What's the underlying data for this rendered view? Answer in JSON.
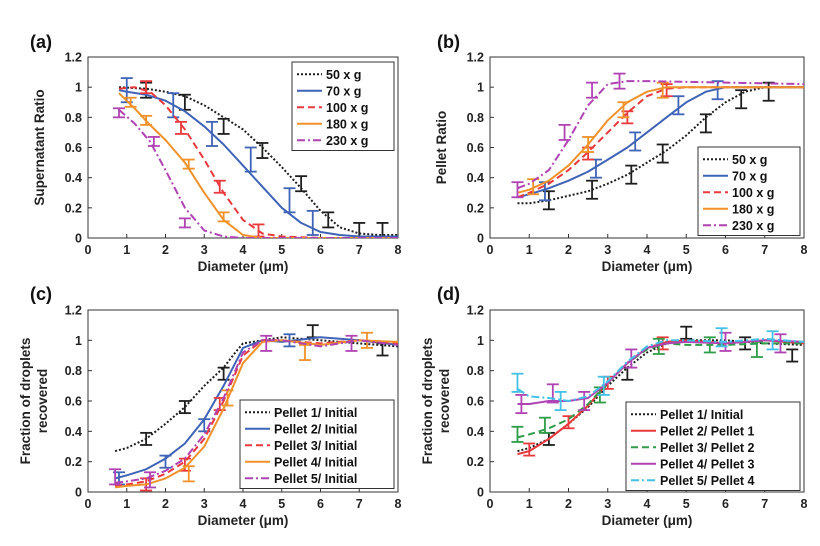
{
  "colors": {
    "black": "#1e1e1e",
    "blue": "#3f63b6",
    "red": "#e8393c",
    "orange": "#f0912a",
    "purple": "#b043b3",
    "green": "#2f9c48",
    "cyan": "#45c0e6"
  },
  "chart_data": [
    {
      "type": "line",
      "panel": "(a)",
      "xlabel": "Diameter (μm)",
      "ylabel": "Supernatant Ratio",
      "xlim": [
        0,
        8
      ],
      "ylim": [
        0,
        1.2
      ],
      "xticks": [
        "0",
        "1",
        "2",
        "3",
        "4",
        "5",
        "6",
        "7",
        "8"
      ],
      "yticks": [
        "0",
        "0.2",
        "0.4",
        "0.6",
        "0.8",
        "1",
        "1.2"
      ],
      "legend_position": "top-right",
      "series": [
        {
          "name": "50 x g",
          "color": "black",
          "dash": "dot",
          "x": [
            0.8,
            1.5,
            2.0,
            2.5,
            3.0,
            3.5,
            4.0,
            4.5,
            5.0,
            5.5,
            6.0,
            6.5,
            7.0,
            7.5,
            8.0
          ],
          "y": [
            1.0,
            0.99,
            0.97,
            0.94,
            0.88,
            0.8,
            0.72,
            0.6,
            0.47,
            0.33,
            0.18,
            0.07,
            0.03,
            0.02,
            0.02
          ],
          "err_x": [
            1.5,
            2.5,
            3.5,
            4.5,
            5.5,
            6.2,
            7.0,
            7.6
          ],
          "err_y": [
            0.98,
            0.9,
            0.74,
            0.58,
            0.36,
            0.12,
            0.05,
            0.05
          ],
          "err": 0.05
        },
        {
          "name": "70 x g",
          "color": "blue",
          "dash": "solid",
          "x": [
            0.8,
            1.0,
            1.5,
            2.0,
            2.5,
            3.0,
            3.5,
            4.0,
            4.5,
            5.0,
            5.5,
            6.0,
            6.5,
            7.0,
            8.0
          ],
          "y": [
            0.98,
            0.97,
            0.95,
            0.91,
            0.84,
            0.74,
            0.62,
            0.48,
            0.34,
            0.2,
            0.1,
            0.04,
            0.02,
            0.01,
            0.01
          ],
          "err_x": [
            1.0,
            2.2,
            3.2,
            4.2,
            5.2,
            5.8
          ],
          "err_y": [
            0.98,
            0.88,
            0.69,
            0.52,
            0.25,
            0.1
          ],
          "err": 0.08
        },
        {
          "name": "100 x g",
          "color": "red",
          "dash": "dash",
          "x": [
            0.8,
            1.2,
            1.6,
            2.0,
            2.5,
            3.0,
            3.5,
            4.0,
            4.5,
            5.0,
            6.0,
            8.0
          ],
          "y": [
            0.99,
            1.0,
            0.97,
            0.88,
            0.72,
            0.52,
            0.3,
            0.12,
            0.03,
            0.01,
            0.0,
            0.0
          ],
          "err_x": [
            1.5,
            2.4,
            3.4,
            4.4
          ],
          "err_y": [
            1.0,
            0.73,
            0.34,
            0.05
          ],
          "err": 0.04
        },
        {
          "name": "180 x g",
          "color": "orange",
          "dash": "solid",
          "x": [
            0.8,
            1.2,
            1.6,
            2.0,
            2.5,
            3.0,
            3.5,
            4.0,
            4.5,
            5.0,
            8.0
          ],
          "y": [
            0.96,
            0.86,
            0.75,
            0.65,
            0.5,
            0.3,
            0.12,
            0.02,
            0.0,
            0.0,
            0.0
          ],
          "err_x": [
            1.1,
            1.5,
            2.6,
            3.5
          ],
          "err_y": [
            0.9,
            0.78,
            0.49,
            0.14
          ],
          "err": 0.03
        },
        {
          "name": "230 x g",
          "color": "purple",
          "dash": "dashdot",
          "x": [
            0.8,
            1.2,
            1.6,
            2.0,
            2.5,
            3.0,
            3.5,
            4.0,
            8.0
          ],
          "y": [
            0.85,
            0.76,
            0.64,
            0.45,
            0.2,
            0.05,
            0.01,
            0.0,
            0.0
          ],
          "err_x": [
            0.8,
            1.7,
            2.5
          ],
          "err_y": [
            0.83,
            0.64,
            0.1
          ],
          "err": 0.03
        }
      ]
    },
    {
      "type": "line",
      "panel": "(b)",
      "xlabel": "Diameter (μm)",
      "ylabel": "Pellet Ratio",
      "xlim": [
        0,
        8
      ],
      "ylim": [
        0,
        1.2
      ],
      "xticks": [
        "0",
        "1",
        "2",
        "3",
        "4",
        "5",
        "6",
        "7",
        "8"
      ],
      "yticks": [
        "0",
        "0.2",
        "0.4",
        "0.6",
        "0.8",
        "1",
        "1.2"
      ],
      "legend_position": "bottom-right",
      "series": [
        {
          "name": "50 x g",
          "color": "black",
          "dash": "dot",
          "x": [
            0.7,
            1.0,
            1.5,
            2.0,
            2.5,
            3.0,
            3.5,
            4.0,
            4.5,
            5.0,
            5.5,
            6.0,
            6.5,
            7.0,
            7.5,
            8.0
          ],
          "y": [
            0.23,
            0.23,
            0.25,
            0.28,
            0.31,
            0.36,
            0.42,
            0.5,
            0.58,
            0.68,
            0.8,
            0.9,
            0.97,
            1.0,
            1.0,
            1.0
          ],
          "err_x": [
            1.5,
            2.6,
            3.6,
            4.4,
            5.5,
            6.4,
            7.1
          ],
          "err_y": [
            0.25,
            0.32,
            0.42,
            0.56,
            0.76,
            0.92,
            0.97
          ],
          "err": 0.06
        },
        {
          "name": "70 x g",
          "color": "blue",
          "dash": "solid",
          "x": [
            0.7,
            1.0,
            1.5,
            2.0,
            2.5,
            3.0,
            3.5,
            4.0,
            4.5,
            5.0,
            5.5,
            6.0,
            6.5,
            7.0,
            8.0
          ],
          "y": [
            0.27,
            0.29,
            0.33,
            0.38,
            0.44,
            0.52,
            0.6,
            0.7,
            0.8,
            0.9,
            0.97,
            1.0,
            1.0,
            1.0,
            1.0
          ],
          "err_x": [
            1.4,
            2.7,
            3.7,
            4.8,
            5.8
          ],
          "err_y": [
            0.31,
            0.46,
            0.64,
            0.88,
            0.98
          ],
          "err": 0.06
        },
        {
          "name": "100 x g",
          "color": "red",
          "dash": "dash",
          "x": [
            0.7,
            1.0,
            1.5,
            2.0,
            2.5,
            3.0,
            3.5,
            4.0,
            4.5,
            5.0,
            8.0
          ],
          "y": [
            0.27,
            0.3,
            0.36,
            0.45,
            0.57,
            0.7,
            0.83,
            0.94,
            0.99,
            1.0,
            1.0
          ],
          "err_x": [
            2.5,
            3.5,
            4.5
          ],
          "err_y": [
            0.56,
            0.8,
            0.98
          ],
          "err": 0.04
        },
        {
          "name": "180 x g",
          "color": "orange",
          "dash": "solid",
          "x": [
            0.7,
            1.0,
            1.5,
            2.0,
            2.5,
            3.0,
            3.5,
            4.0,
            4.5,
            5.0,
            8.0
          ],
          "y": [
            0.3,
            0.32,
            0.38,
            0.48,
            0.62,
            0.78,
            0.9,
            0.97,
            1.0,
            1.0,
            1.0
          ],
          "err_x": [
            1.1,
            2.5,
            3.4,
            4.4
          ],
          "err_y": [
            0.34,
            0.62,
            0.85,
            0.98
          ],
          "err": 0.05
        },
        {
          "name": "230 x g",
          "color": "purple",
          "dash": "dashdot",
          "x": [
            0.7,
            1.0,
            1.5,
            2.0,
            2.5,
            3.0,
            3.5,
            4.0,
            8.0
          ],
          "y": [
            0.33,
            0.36,
            0.45,
            0.65,
            0.88,
            1.02,
            1.04,
            1.04,
            1.02
          ],
          "err_x": [
            0.7,
            1.9,
            2.6,
            3.3
          ],
          "err_y": [
            0.32,
            0.7,
            0.98,
            1.04
          ],
          "err": 0.05
        }
      ]
    },
    {
      "type": "line",
      "panel": "(c)",
      "xlabel": "Diameter (μm)",
      "ylabel": "Fraction of droplets recovered",
      "ylabel_lines": [
        "Fraction of droplets",
        "recovered"
      ],
      "xlim": [
        0,
        8
      ],
      "ylim": [
        0,
        1.2
      ],
      "xticks": [
        "0",
        "1",
        "2",
        "3",
        "4",
        "5",
        "6",
        "7",
        "8"
      ],
      "yticks": [
        "0",
        "0.2",
        "0.4",
        "0.6",
        "0.8",
        "1",
        "1.2"
      ],
      "legend_position": "bottom-right",
      "series": [
        {
          "name": "Pellet 1/ Initial",
          "color": "black",
          "dash": "dot",
          "x": [
            0.7,
            1.0,
            1.5,
            2.0,
            2.5,
            3.0,
            3.5,
            3.8,
            4.0,
            4.5,
            5.0,
            6.0,
            7.0,
            8.0
          ],
          "y": [
            0.27,
            0.29,
            0.35,
            0.45,
            0.56,
            0.7,
            0.82,
            0.92,
            0.98,
            1.0,
            1.02,
            1.0,
            0.98,
            0.96
          ],
          "err_x": [
            1.5,
            2.5,
            3.5,
            5.8,
            7.6
          ],
          "err_y": [
            0.35,
            0.56,
            0.78,
            1.06,
            0.94
          ],
          "err": 0.04
        },
        {
          "name": "Pellet 2/ Initial",
          "color": "blue",
          "dash": "solid",
          "x": [
            0.7,
            1.0,
            1.5,
            2.0,
            2.5,
            3.0,
            3.5,
            4.0,
            4.5,
            5.0,
            6.0,
            7.0,
            8.0
          ],
          "y": [
            0.09,
            0.11,
            0.15,
            0.22,
            0.32,
            0.48,
            0.7,
            0.95,
            1.0,
            0.99,
            1.02,
            1.0,
            0.97
          ],
          "err_x": [
            0.8,
            2.0,
            3.0,
            5.2
          ],
          "err_y": [
            0.09,
            0.2,
            0.44,
            1.0
          ],
          "err": 0.04
        },
        {
          "name": "Pellet 3/ Initial",
          "color": "red",
          "dash": "dash",
          "x": [
            0.7,
            1.0,
            1.5,
            2.0,
            2.5,
            3.0,
            3.5,
            4.0,
            4.5,
            5.0,
            6.0,
            7.0,
            8.0
          ],
          "y": [
            0.04,
            0.05,
            0.07,
            0.12,
            0.2,
            0.35,
            0.6,
            0.9,
            1.0,
            1.0,
            0.98,
            1.0,
            0.98
          ],
          "err_x": [
            1.5,
            2.5,
            3.4
          ],
          "err_y": [
            0.05,
            0.18,
            0.58
          ],
          "err": 0.04
        },
        {
          "name": "Pellet 4/ Initial",
          "color": "orange",
          "dash": "solid",
          "x": [
            0.7,
            1.0,
            1.5,
            2.0,
            2.5,
            3.0,
            3.5,
            4.0,
            4.5,
            5.0,
            6.0,
            7.0,
            8.0
          ],
          "y": [
            0.03,
            0.04,
            0.05,
            0.09,
            0.16,
            0.3,
            0.55,
            0.85,
            0.99,
            1.0,
            0.97,
            1.0,
            0.99
          ],
          "err_x": [
            2.6,
            3.6,
            5.6,
            7.2
          ],
          "err_y": [
            0.12,
            0.62,
            0.92,
            1.0
          ],
          "err": 0.05
        },
        {
          "name": "Pellet 5/ Initial",
          "color": "purple",
          "dash": "dashdot",
          "x": [
            0.7,
            1.0,
            1.5,
            2.0,
            2.5,
            3.0,
            3.5,
            4.0,
            4.5,
            5.0,
            6.0,
            7.0,
            8.0
          ],
          "y": [
            0.06,
            0.07,
            0.09,
            0.14,
            0.22,
            0.38,
            0.62,
            0.92,
            1.0,
            1.0,
            0.96,
            1.0,
            0.97
          ],
          "err_x": [
            0.7,
            1.6,
            4.6,
            6.8
          ],
          "err_y": [
            0.1,
            0.08,
            0.98,
            0.98
          ],
          "err": 0.05
        }
      ]
    },
    {
      "type": "line",
      "panel": "(d)",
      "xlabel": "Diameter (μm)",
      "ylabel": "Fraction of droplets recovered",
      "ylabel_lines": [
        "Fraction of droplets",
        "recovered"
      ],
      "xlim": [
        0,
        8
      ],
      "ylim": [
        0,
        1.2
      ],
      "xticks": [
        "0",
        "1",
        "2",
        "3",
        "4",
        "5",
        "6",
        "7",
        "8"
      ],
      "yticks": [
        "0",
        "0.2",
        "0.4",
        "0.6",
        "0.8",
        "1",
        "1.2"
      ],
      "legend_position": "bottom-right",
      "series": [
        {
          "name": "Pellet 1/ Initial",
          "color": "black",
          "dash": "dot",
          "x": [
            0.7,
            1.0,
            1.5,
            2.0,
            2.5,
            3.0,
            3.5,
            4.0,
            4.5,
            5.0,
            6.0,
            7.0,
            8.0
          ],
          "y": [
            0.27,
            0.29,
            0.35,
            0.45,
            0.56,
            0.7,
            0.82,
            0.92,
            0.98,
            1.0,
            1.0,
            0.98,
            0.97
          ],
          "err_x": [
            1.5,
            3.5,
            5.0,
            6.5,
            7.7
          ],
          "err_y": [
            0.35,
            0.78,
            1.05,
            0.98,
            0.9
          ],
          "err": 0.04
        },
        {
          "name": "Pellet 2/ Pellet 1",
          "color": "red",
          "dash": "solid",
          "x": [
            0.7,
            1.0,
            1.5,
            2.0,
            2.5,
            3.0,
            3.5,
            4.0,
            4.5,
            5.0,
            6.0,
            7.0,
            8.0
          ],
          "y": [
            0.25,
            0.27,
            0.35,
            0.45,
            0.57,
            0.72,
            0.85,
            0.95,
            0.99,
            1.0,
            0.98,
            1.0,
            0.98
          ],
          "err_x": [
            1.0,
            2.0,
            3.0,
            4.4
          ],
          "err_y": [
            0.28,
            0.46,
            0.72,
            0.98
          ],
          "err": 0.04
        },
        {
          "name": "Pellet 3/ Pellet 2",
          "color": "green",
          "dash": "dash",
          "x": [
            0.7,
            1.0,
            1.5,
            2.0,
            2.5,
            3.0,
            3.5,
            4.0,
            4.5,
            5.0,
            6.0,
            7.0,
            8.0
          ],
          "y": [
            0.36,
            0.38,
            0.42,
            0.48,
            0.58,
            0.72,
            0.85,
            0.94,
            0.98,
            0.97,
            0.97,
            0.98,
            0.98
          ],
          "err_x": [
            0.7,
            1.4,
            2.8,
            4.3,
            5.6,
            6.8
          ],
          "err_y": [
            0.38,
            0.44,
            0.64,
            0.96,
            0.97,
            0.94
          ],
          "err": 0.05
        },
        {
          "name": "Pellet 4/ Pellet 3",
          "color": "purple",
          "dash": "solid",
          "x": [
            0.7,
            1.0,
            1.5,
            2.0,
            2.5,
            3.0,
            3.5,
            4.0,
            4.5,
            5.0,
            6.0,
            7.0,
            8.0
          ],
          "y": [
            0.58,
            0.58,
            0.6,
            0.6,
            0.62,
            0.72,
            0.85,
            0.95,
            0.98,
            0.99,
            0.98,
            1.0,
            0.99
          ],
          "err_x": [
            0.8,
            1.6,
            2.4,
            3.6,
            6.0,
            7.4
          ],
          "err_y": [
            0.58,
            0.65,
            0.6,
            0.88,
            0.99,
            0.98
          ],
          "err": 0.06
        },
        {
          "name": "Pellet 5/ Pellet 4",
          "color": "cyan",
          "dash": "dashdot",
          "x": [
            0.7,
            1.0,
            1.5,
            2.0,
            2.5,
            3.0,
            3.5,
            4.0,
            4.5,
            5.0,
            6.0,
            7.0,
            8.0
          ],
          "y": [
            0.68,
            0.63,
            0.62,
            0.6,
            0.63,
            0.73,
            0.86,
            0.96,
            1.0,
            1.0,
            0.99,
            1.01,
            0.99
          ],
          "err_x": [
            0.7,
            1.8,
            2.9,
            5.9,
            7.2
          ],
          "err_y": [
            0.72,
            0.6,
            0.7,
            1.02,
            1.0
          ],
          "err": 0.06
        }
      ]
    }
  ]
}
